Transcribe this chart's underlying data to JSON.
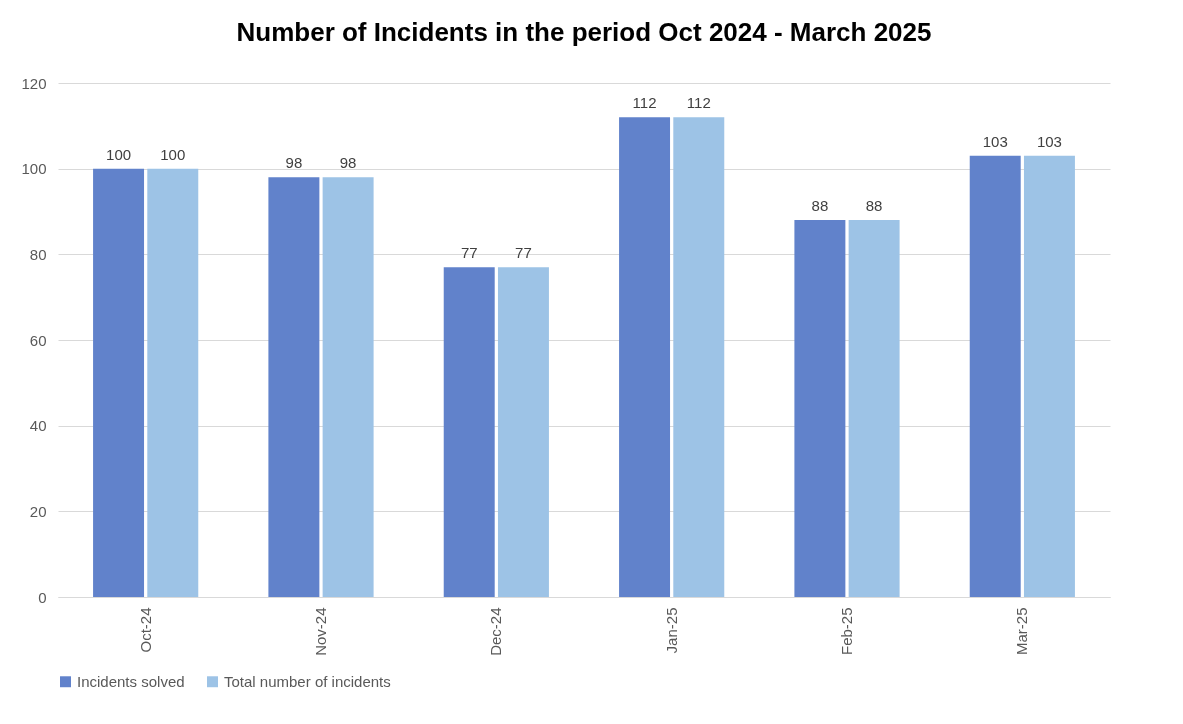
{
  "chart_data": {
    "type": "bar",
    "title": "Number of Incidents in the period Oct 2024 - March 2025",
    "categories": [
      "Oct-24",
      "Nov-24",
      "Dec-24",
      "Jan-25",
      "Feb-25",
      "Mar-25"
    ],
    "series": [
      {
        "name": "Incidents solved",
        "color": "#6182cb",
        "values": [
          100,
          98,
          77,
          112,
          88,
          103
        ]
      },
      {
        "name": "Total number of incidents",
        "color": "#9dc3e6",
        "values": [
          100,
          98,
          77,
          112,
          88,
          103
        ]
      }
    ],
    "ylim": [
      0,
      120
    ],
    "yticks": [
      0,
      20,
      40,
      60,
      80,
      100,
      120
    ],
    "grid": "y",
    "legend": "bottom",
    "data_labels": true
  }
}
